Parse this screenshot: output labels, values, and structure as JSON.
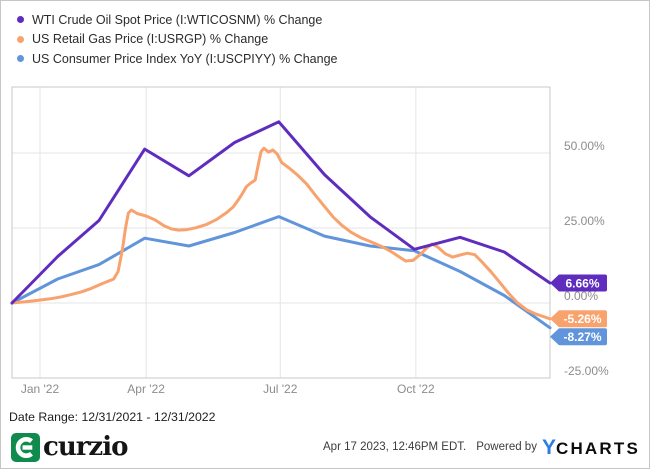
{
  "date_range_label": "Date Range: 12/31/2021 - 12/31/2022",
  "chart_data": {
    "type": "line",
    "title": "",
    "grid": true,
    "legend_position": "top-left",
    "x_axis": {
      "unit": "date",
      "domain_days": [
        0,
        365
      ],
      "start_date": "12/31/2021",
      "end_date": "12/31/2022",
      "ticks": [
        {
          "label": "Jan '22",
          "day": 19
        },
        {
          "label": "Apr '22",
          "day": 91
        },
        {
          "label": "Jul '22",
          "day": 182
        },
        {
          "label": "Oct '22",
          "day": 274
        }
      ]
    },
    "y_axis": {
      "unit": "%",
      "range": [
        -25,
        72
      ],
      "ticks": [
        {
          "label": "50.00%",
          "value": 50
        },
        {
          "label": "25.00%",
          "value": 25
        },
        {
          "label": "0.00%",
          "value": 0
        },
        {
          "label": "-25.00%",
          "value": -25
        }
      ]
    },
    "series": [
      {
        "name": "WTI Crude Oil Spot Price (I:WTICOSNM) % Change",
        "color": "#5f2dbe",
        "end_label": "6.66%",
        "end_value": 6.66,
        "points": [
          [
            0,
            0
          ],
          [
            31,
            15.5
          ],
          [
            59,
            27.5
          ],
          [
            90,
            51.3
          ],
          [
            120,
            42.4
          ],
          [
            151,
            53.5
          ],
          [
            181,
            60.4
          ],
          [
            212,
            42.8
          ],
          [
            243,
            28.7
          ],
          [
            273,
            17.9
          ],
          [
            304,
            21.9
          ],
          [
            334,
            17
          ],
          [
            365,
            6.66
          ]
        ]
      },
      {
        "name": "US Retail Gas Price (I:USRGP) % Change",
        "color": "#f8a26e",
        "end_label": "-5.26%",
        "end_value": -5.26,
        "points": [
          [
            0,
            0
          ],
          [
            9,
            0.4
          ],
          [
            18,
            0.9
          ],
          [
            26,
            1.4
          ],
          [
            33,
            2
          ],
          [
            40,
            2.8
          ],
          [
            47,
            3.7
          ],
          [
            54,
            4.9
          ],
          [
            60,
            6.2
          ],
          [
            65,
            7.2
          ],
          [
            69,
            8
          ],
          [
            72,
            10.5
          ],
          [
            75,
            18
          ],
          [
            77,
            25
          ],
          [
            79,
            30
          ],
          [
            81,
            31
          ],
          [
            85,
            29.8
          ],
          [
            91,
            29
          ],
          [
            97,
            27.7
          ],
          [
            103,
            25.8
          ],
          [
            108,
            24.7
          ],
          [
            113,
            24.3
          ],
          [
            118,
            24.4
          ],
          [
            125,
            25.1
          ],
          [
            132,
            26.2
          ],
          [
            139,
            27.9
          ],
          [
            146,
            30.3
          ],
          [
            150,
            32
          ],
          [
            153,
            34
          ],
          [
            156,
            36.2
          ],
          [
            159,
            38.8
          ],
          [
            162,
            40
          ],
          [
            165,
            41
          ],
          [
            167,
            46
          ],
          [
            169,
            50.5
          ],
          [
            171,
            51.6
          ],
          [
            174,
            50.3
          ],
          [
            177,
            51
          ],
          [
            180,
            49.6
          ],
          [
            183,
            46.8
          ],
          [
            188,
            45
          ],
          [
            194,
            42.5
          ],
          [
            200,
            39.6
          ],
          [
            206,
            35.8
          ],
          [
            212,
            32.2
          ],
          [
            218,
            28.6
          ],
          [
            224,
            25.8
          ],
          [
            230,
            23.6
          ],
          [
            237,
            21.7
          ],
          [
            244,
            20.3
          ],
          [
            251,
            18.8
          ],
          [
            257,
            17.2
          ],
          [
            262,
            15.6
          ],
          [
            267,
            14
          ],
          [
            272,
            14.2
          ],
          [
            277,
            16.2
          ],
          [
            281,
            18.2
          ],
          [
            285,
            19.7
          ],
          [
            289,
            18.6
          ],
          [
            294,
            16.4
          ],
          [
            299,
            15.3
          ],
          [
            304,
            16
          ],
          [
            309,
            16.6
          ],
          [
            314,
            16.1
          ],
          [
            319,
            13.6
          ],
          [
            325,
            10.4
          ],
          [
            331,
            6.8
          ],
          [
            337,
            3.2
          ],
          [
            343,
            0
          ],
          [
            349,
            -2.2
          ],
          [
            355,
            -3.6
          ],
          [
            361,
            -4.6
          ],
          [
            365,
            -5.26
          ]
        ]
      },
      {
        "name": "US Consumer Price Index YoY (I:USCPIYY) % Change",
        "color": "#6195db",
        "end_label": "-8.27%",
        "end_value": -8.27,
        "points": [
          [
            0,
            0
          ],
          [
            31,
            8
          ],
          [
            59,
            12.8
          ],
          [
            90,
            21.6
          ],
          [
            120,
            19
          ],
          [
            151,
            23.5
          ],
          [
            181,
            28.8
          ],
          [
            212,
            22.3
          ],
          [
            243,
            19
          ],
          [
            273,
            17.4
          ],
          [
            304,
            10.5
          ],
          [
            334,
            2.5
          ],
          [
            365,
            -8.27
          ]
        ]
      }
    ]
  },
  "footer": {
    "brand": "curzio",
    "brand_color": "#0f8b4e",
    "timestamp": "Apr 17 2023, 12:46PM EDT.",
    "powered_by": "Powered by",
    "ycharts_y": "Y",
    "ycharts_rest": "CHARTS",
    "ycharts_y_color": "#2e7de1"
  }
}
